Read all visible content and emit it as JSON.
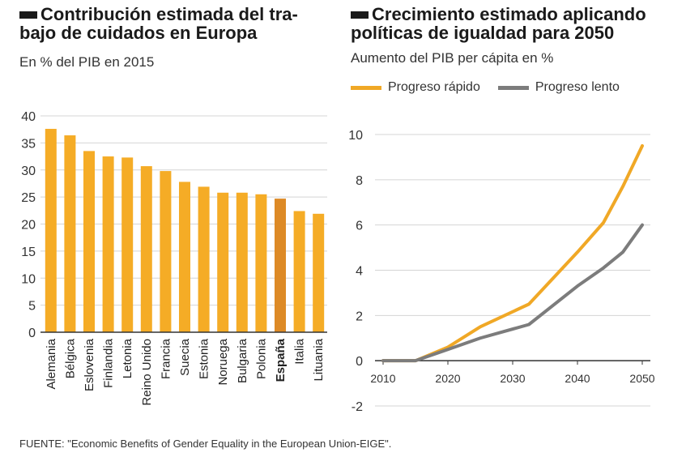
{
  "left": {
    "title_line1": "Contribución estimada del tra-",
    "title_line2": "bajo de cuidados en Europa",
    "subtitle": "En % del PIB en 2015"
  },
  "right": {
    "title_line1": "Crecimiento estimado aplicando",
    "title_line2": "políticas de igualdad para 2050",
    "subtitle": "Aumento del PIB per cápita en %"
  },
  "source": "FUENTE: \"Economic Benefits of Gender Equality in the European Union-EIGE\".",
  "colors": {
    "bar": "#f5ac26",
    "bar_highlight": "#dd8a26",
    "fast": "#f0a826",
    "slow": "#7c7c7c",
    "grid": "#d4d4d4",
    "axis": "#333333"
  },
  "chart_data": [
    {
      "type": "bar",
      "categories": [
        "Alemania",
        "Bélgica",
        "Eslovenia",
        "Finlandia",
        "Letonia",
        "Reino Unido",
        "Francia",
        "Suecia",
        "Estonia",
        "Noruega",
        "Bulgaria",
        "Polonia",
        "España",
        "Italia",
        "Lituania"
      ],
      "values": [
        37.6,
        36.4,
        33.5,
        32.5,
        32.3,
        30.7,
        29.8,
        27.8,
        26.9,
        25.8,
        25.8,
        25.5,
        24.7,
        22.4,
        21.9
      ],
      "highlight": "España",
      "ylim": [
        0,
        40
      ],
      "yticks": [
        0,
        5,
        10,
        15,
        20,
        25,
        30,
        35,
        40
      ],
      "grid": true
    },
    {
      "type": "line",
      "xlim": [
        2010,
        2050
      ],
      "ylim": [
        -2,
        10
      ],
      "xticks": [
        2010,
        2020,
        2030,
        2040,
        2050
      ],
      "yticks": [
        -2,
        0,
        2,
        4,
        6,
        8,
        10
      ],
      "grid": true,
      "legend_position": "top",
      "series": [
        {
          "name": "Progreso rápido",
          "x": [
            2010,
            2015,
            2020,
            2025,
            2032.5,
            2040,
            2044,
            2047,
            2050
          ],
          "y": [
            0,
            0,
            0.6,
            1.5,
            2.5,
            4.8,
            6.1,
            7.7,
            9.5
          ]
        },
        {
          "name": "Progreso lento",
          "x": [
            2010,
            2015,
            2020,
            2025,
            2032.5,
            2040,
            2044,
            2047,
            2050
          ],
          "y": [
            0,
            0,
            0.5,
            1.0,
            1.6,
            3.3,
            4.1,
            4.8,
            6.0
          ]
        }
      ]
    }
  ]
}
